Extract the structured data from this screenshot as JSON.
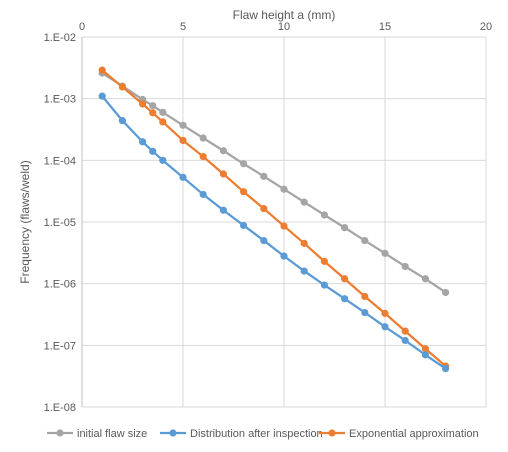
{
  "chart_data": {
    "type": "line",
    "title": "",
    "xlabel": "Flaw height a (mm)",
    "ylabel": "Frequency (flaws/weld)",
    "xlim": [
      0,
      20
    ],
    "ylim": [
      1e-08,
      0.01
    ],
    "yscale": "log",
    "x_ticks": [
      "0",
      "5",
      "10",
      "15",
      "20"
    ],
    "y_ticks": [
      "1.E-02",
      "1.E-03",
      "1.E-04",
      "1.E-05",
      "1.E-06",
      "1.E-07",
      "1.E-08"
    ],
    "x_axis_position": "top",
    "grid": true,
    "legend_position": "bottom",
    "series": [
      {
        "name": "initial flaw size",
        "color": "#a5a5a5",
        "x": [
          1,
          2,
          3,
          3.5,
          4,
          5,
          6,
          7,
          8,
          9,
          10,
          11,
          12,
          13,
          14,
          15,
          16,
          17,
          18
        ],
        "y": [
          0.0026,
          0.0016,
          0.00097,
          0.00077,
          0.0006,
          0.00037,
          0.00023,
          0.000143,
          8.8e-05,
          5.5e-05,
          3.4e-05,
          2.1e-05,
          1.3e-05,
          8.1e-06,
          5e-06,
          3.1e-06,
          1.9e-06,
          1.2e-06,
          7.2e-07
        ]
      },
      {
        "name": "Distribution after inspection",
        "color": "#5b9bd5",
        "x": [
          1,
          2,
          3,
          3.5,
          4,
          5,
          6,
          7,
          8,
          9,
          10,
          11,
          12,
          13,
          14,
          15,
          16,
          17,
          18
        ],
        "y": [
          0.0011,
          0.00044,
          0.0002,
          0.00014,
          0.0001,
          5.3e-05,
          2.8e-05,
          1.55e-05,
          8.8e-06,
          5e-06,
          2.8e-06,
          1.6e-06,
          9.5e-07,
          5.7e-07,
          3.4e-07,
          2e-07,
          1.2e-07,
          7e-08,
          4.2e-08
        ]
      },
      {
        "name": "Exponential approximation",
        "color": "#ed7d31",
        "x": [
          1,
          2,
          3,
          3.5,
          4,
          5,
          6,
          7,
          8,
          9,
          10,
          11,
          12,
          13,
          14,
          15,
          16,
          17,
          18
        ],
        "y": [
          0.0029,
          0.00155,
          0.00082,
          0.00059,
          0.00042,
          0.00021,
          0.000115,
          6e-05,
          3.1e-05,
          1.65e-05,
          8.6e-06,
          4.5e-06,
          2.3e-06,
          1.2e-06,
          6.2e-07,
          3.3e-07,
          1.7e-07,
          8.8e-08,
          4.6e-08
        ]
      }
    ]
  }
}
